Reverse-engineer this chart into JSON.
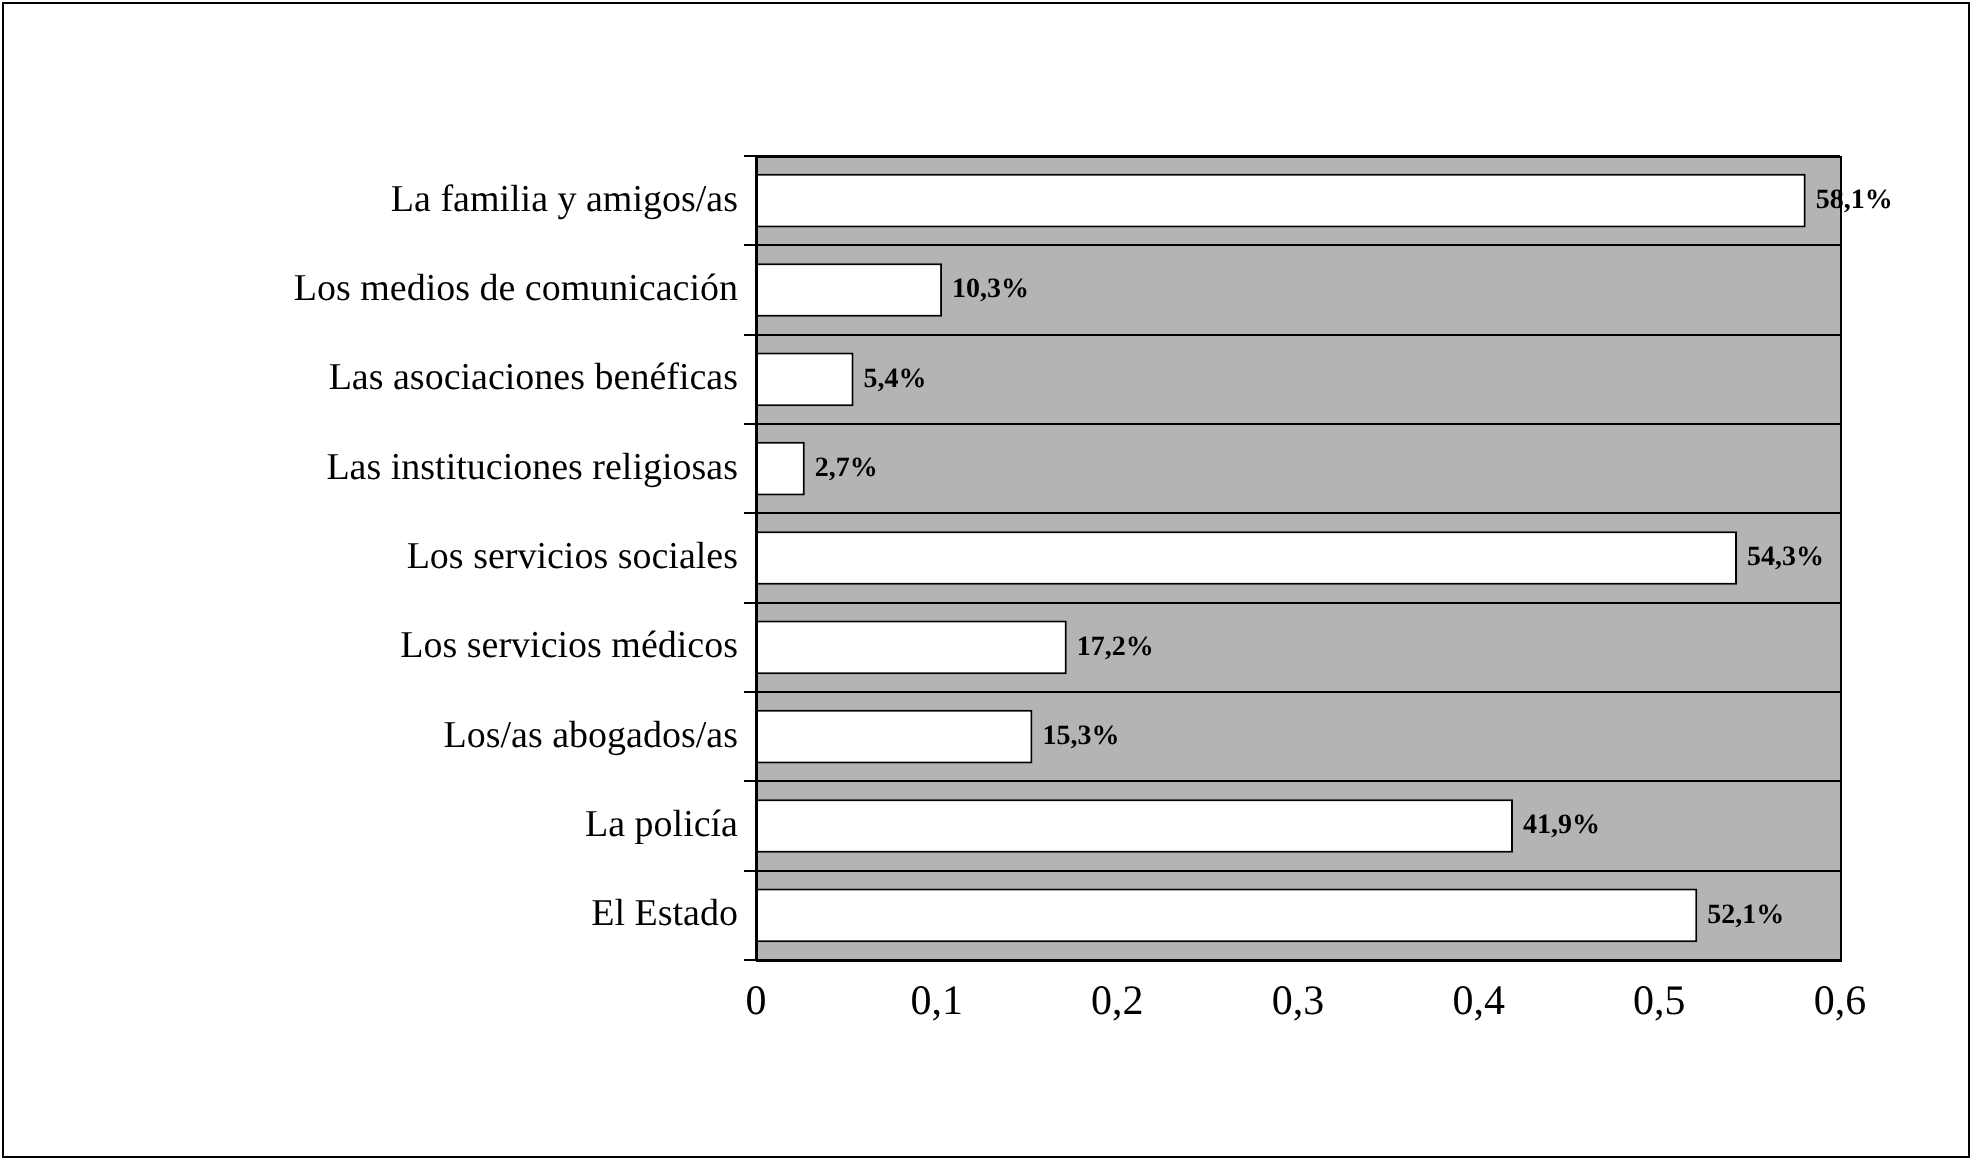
{
  "chart_data": {
    "type": "bar",
    "orientation": "horizontal",
    "categories": [
      "La familia y amigos/as",
      "Los medios de comunicación",
      "Las asociaciones benéficas",
      "Las instituciones religiosas",
      "Los servicios sociales",
      "Los servicios médicos",
      "Los/as abogados/as",
      "La policía",
      "El Estado"
    ],
    "values": [
      0.581,
      0.103,
      0.054,
      0.027,
      0.543,
      0.172,
      0.153,
      0.419,
      0.521
    ],
    "value_labels": [
      "58,1%",
      "10,3%",
      "5,4%",
      "2,7%",
      "54,3%",
      "17,2%",
      "15,3%",
      "41,9%",
      "52,1%"
    ],
    "color": "#ffffff",
    "xlim": [
      0,
      0.6
    ],
    "xticks": [
      0,
      {
        "value": 0.1,
        "label": "0,1"
      },
      {
        "value": 0.2,
        "label": "0,2"
      },
      {
        "value": 0.3,
        "label": "0,3"
      },
      {
        "value": 0.4,
        "label": "0,4"
      },
      {
        "value": 0.5,
        "label": "0,5"
      },
      {
        "value": 0.6,
        "label": "0,6"
      }
    ],
    "grid": "y",
    "legend": false
  }
}
